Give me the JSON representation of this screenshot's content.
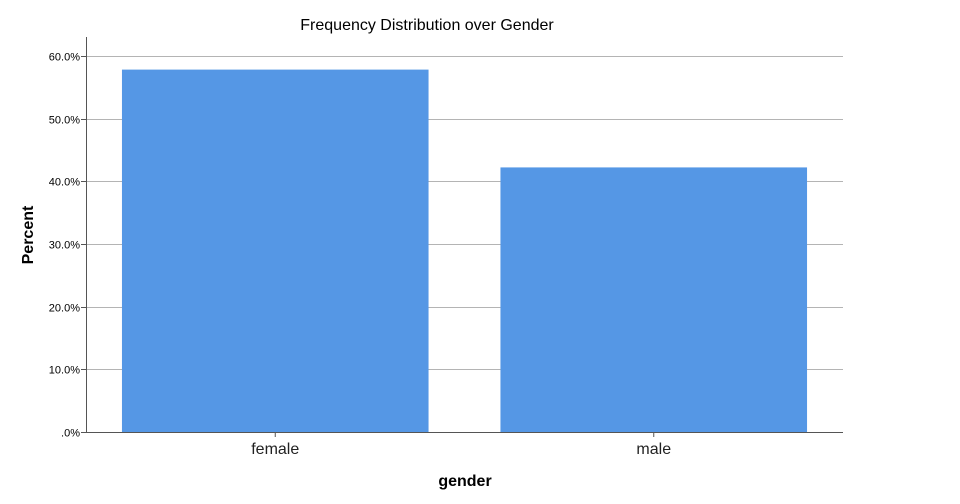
{
  "chart_data": {
    "type": "bar",
    "title": "Frequency Distribution over Gender",
    "xlabel": "gender",
    "ylabel": "Percent",
    "categories": [
      "female",
      "male"
    ],
    "values": [
      57.8,
      42.2
    ],
    "ylim": [
      0,
      63
    ],
    "yticks": [
      0,
      10,
      20,
      30,
      40,
      50,
      60
    ],
    "ytick_labels": [
      ".0%",
      "10.0%",
      "20.0%",
      "30.0%",
      "40.0%",
      "50.0%",
      "60.0%"
    ],
    "grid": true,
    "bar_color": "#5597e5",
    "grid_color": "#b4b4b4",
    "axis_color": "#555555"
  }
}
